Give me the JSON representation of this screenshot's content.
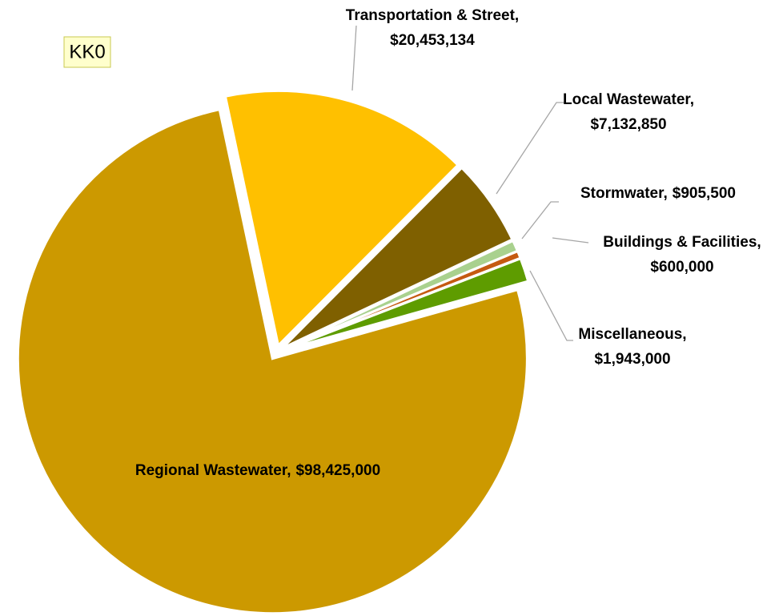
{
  "chart_data": {
    "type": "pie",
    "annotation": "KK0",
    "categories": [
      "Transportation & Street,",
      "Local Wastewater,",
      "Stormwater,",
      "Buildings & Facilities,",
      "Miscellaneous,",
      "Regional Wastewater,"
    ],
    "values": [
      20453134,
      7132850,
      905500,
      600000,
      1943000,
      98425000
    ],
    "value_labels": [
      "$20,453,134",
      "$7,132,850",
      "$905,500",
      "$600,000",
      "$1,943,000",
      "$98,425,000"
    ],
    "colors": [
      "#ffc000",
      "#7f6000",
      "#a9d18e",
      "#c55a11",
      "#5e9c00",
      "#cc9900"
    ]
  }
}
